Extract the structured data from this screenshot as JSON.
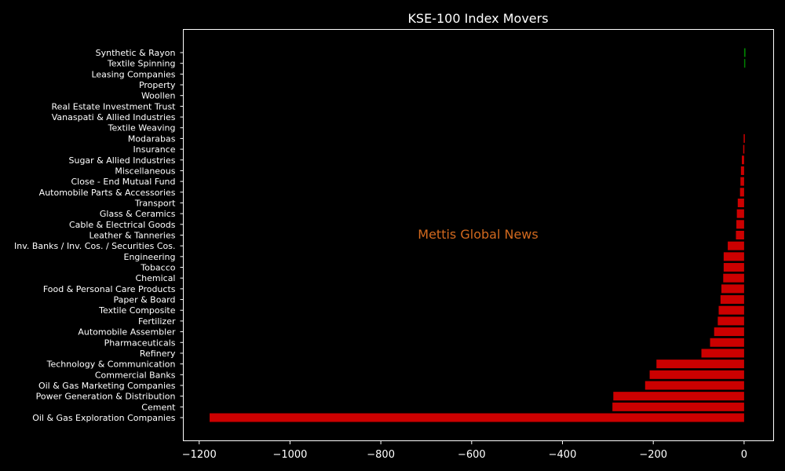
{
  "chart_data": {
    "type": "bar",
    "orientation": "horizontal",
    "title": "KSE-100 Index Movers",
    "watermark": "Mettis Global News",
    "xlim": [
      -1235,
      65
    ],
    "xticks": [
      -1200,
      -1000,
      -800,
      -600,
      -400,
      -200,
      0
    ],
    "xtick_labels": [
      "−1200",
      "−1000",
      "−800",
      "−600",
      "−400",
      "−200",
      "0"
    ],
    "categories": [
      "Synthetic & Rayon",
      "Textile Spinning",
      "Leasing Companies",
      "Property",
      "Woollen",
      "Real Estate Investment Trust",
      "Vanaspati & Allied Industries",
      "Textile Weaving",
      "Modarabas",
      "Insurance",
      "Sugar & Allied Industries",
      "Miscellaneous",
      "Close - End Mutual Fund",
      "Automobile Parts & Accessories",
      "Transport",
      "Glass & Ceramics",
      "Cable & Electrical Goods",
      "Leather & Tanneries",
      "Inv. Banks / Inv. Cos. / Securities Cos.",
      "Engineering",
      "Tobacco",
      "Chemical",
      "Food & Personal Care Products",
      "Paper & Board",
      "Textile Composite",
      "Fertilizer",
      "Automobile Assembler",
      "Pharmaceuticals",
      "Refinery",
      "Technology & Communication",
      "Commercial Banks",
      "Oil & Gas Marketing Companies",
      "Power Generation & Distribution",
      "Cement",
      "Oil & Gas Exploration Companies"
    ],
    "values": [
      3,
      2,
      0,
      0,
      0,
      0,
      0,
      0,
      -1,
      -2,
      -5,
      -7,
      -8,
      -9,
      -14,
      -16,
      -17,
      -18,
      -36,
      -45,
      -45,
      -46,
      -50,
      -52,
      -56,
      -58,
      -66,
      -75,
      -94,
      -193,
      -208,
      -218,
      -288,
      -290,
      -1177
    ],
    "colors": {
      "positive": "#008000",
      "negative": "#cc0000",
      "background": "#000000",
      "axes": "#ffffff",
      "watermark": "#d2691e"
    }
  }
}
